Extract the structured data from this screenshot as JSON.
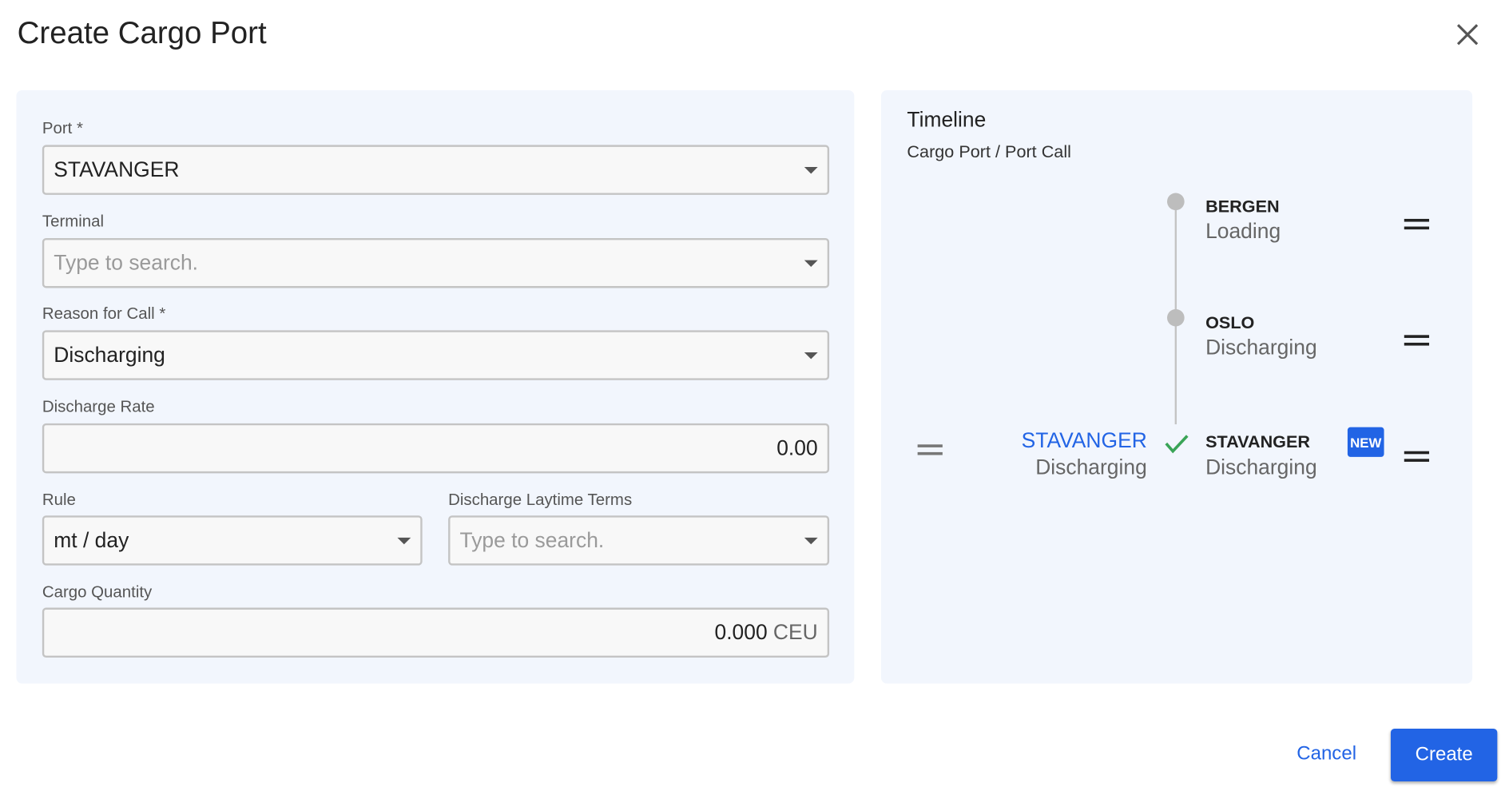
{
  "dialog": {
    "title": "Create Cargo Port",
    "close_icon": "close-icon"
  },
  "form": {
    "port": {
      "label": "Port *",
      "value": "STAVANGER"
    },
    "terminal": {
      "label": "Terminal",
      "placeholder": "Type to search."
    },
    "reason": {
      "label": "Reason for Call *",
      "value": "Discharging"
    },
    "discharge_rate": {
      "label": "Discharge Rate",
      "value": "0.00"
    },
    "rule": {
      "label": "Rule",
      "value": "mt / day"
    },
    "laytime": {
      "label": "Discharge Laytime Terms",
      "placeholder": "Type to search."
    },
    "cargo_quantity": {
      "label": "Cargo Quantity",
      "value": "0.000",
      "unit": "CEU"
    }
  },
  "timeline": {
    "title": "Timeline",
    "subtitle": "Cargo Port / Port Call",
    "items": [
      {
        "port": "BERGEN",
        "activity": "Loading"
      },
      {
        "port": "OSLO",
        "activity": "Discharging"
      },
      {
        "port": "STAVANGER",
        "activity": "Discharging",
        "badge": "NEW"
      }
    ],
    "pending": {
      "port": "STAVANGER",
      "activity": "Discharging"
    },
    "colors": {
      "accent": "#2264e5",
      "check": "#3aa457"
    }
  },
  "footer": {
    "cancel": "Cancel",
    "create": "Create"
  }
}
